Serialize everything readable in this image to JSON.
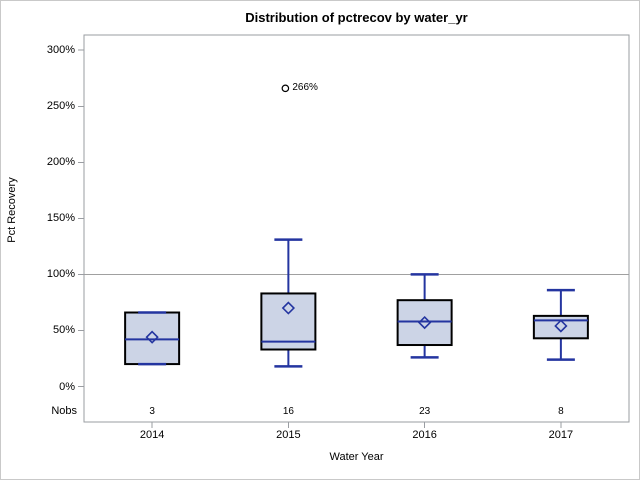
{
  "chart_data": {
    "type": "box",
    "title": "Distribution of pctrecov by water_yr",
    "xlabel": "Water Year",
    "ylabel": "Pct Recovery",
    "nobs_label": "Nobs",
    "categories": [
      "2014",
      "2015",
      "2016",
      "2017"
    ],
    "nobs": [
      3,
      16,
      23,
      8
    ],
    "yticks": [
      {
        "value": 0,
        "label": "0%"
      },
      {
        "value": 50,
        "label": "50%"
      },
      {
        "value": 100,
        "label": "100%"
      },
      {
        "value": 150,
        "label": "150%"
      },
      {
        "value": 200,
        "label": "200%"
      },
      {
        "value": 250,
        "label": "250%"
      },
      {
        "value": 300,
        "label": "300%"
      }
    ],
    "ylim": [
      0,
      313
    ],
    "reference_line": 100,
    "grid": false,
    "legend": "none",
    "series": [
      {
        "category": "2014",
        "n": 3,
        "low": 20,
        "q1": 20,
        "median": 42,
        "mean": 44,
        "q3": 66,
        "high": 66,
        "outliers": []
      },
      {
        "category": "2015",
        "n": 16,
        "low": 18,
        "q1": 33,
        "median": 40,
        "mean": 70,
        "q3": 83,
        "high": 131,
        "outliers": [
          {
            "value": 266,
            "label": "266%"
          }
        ]
      },
      {
        "category": "2016",
        "n": 23,
        "low": 26,
        "q1": 37,
        "median": 58,
        "mean": 57,
        "q3": 77,
        "high": 100,
        "outliers": []
      },
      {
        "category": "2017",
        "n": 8,
        "low": 24,
        "q1": 43,
        "median": 59,
        "mean": 54,
        "q3": 63,
        "high": 86,
        "outliers": []
      }
    ],
    "colors": {
      "box_fill": "#ccd4e6",
      "box_border": "#000000",
      "line_blue": "#2435a0",
      "reference": "#a0a0a0",
      "frame": "#9a9da2",
      "outlier_stroke": "#000000",
      "text": "#000000"
    }
  }
}
